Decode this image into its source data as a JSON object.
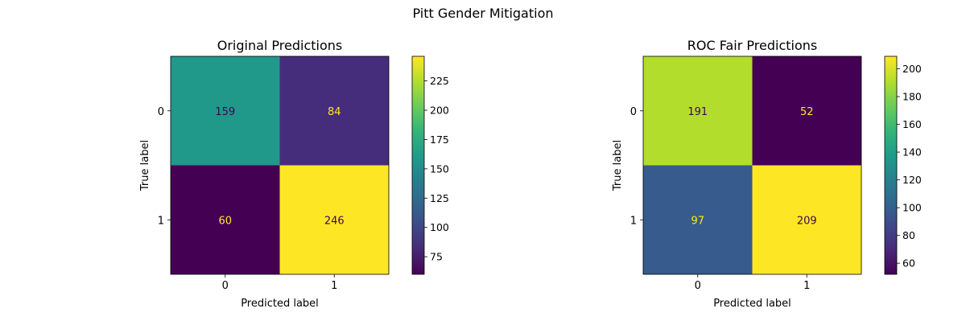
{
  "figure": {
    "title": "Pitt Gender Mitigation"
  },
  "chart_data": [
    {
      "type": "heatmap",
      "title": "Original Predictions",
      "xlabel": "Predicted label",
      "ylabel": "True label",
      "x_categories": [
        "0",
        "1"
      ],
      "y_categories": [
        "0",
        "1"
      ],
      "matrix": [
        [
          159,
          84
        ],
        [
          60,
          246
        ]
      ],
      "colormap": "viridis",
      "colorbar": {
        "min": 60,
        "max": 246,
        "ticks": [
          75,
          100,
          125,
          150,
          175,
          200,
          225
        ]
      },
      "grid": false
    },
    {
      "type": "heatmap",
      "title": "ROC Fair Predictions",
      "xlabel": "Predicted label",
      "ylabel": "True label",
      "x_categories": [
        "0",
        "1"
      ],
      "y_categories": [
        "0",
        "1"
      ],
      "matrix": [
        [
          191,
          52
        ],
        [
          97,
          209
        ]
      ],
      "colormap": "viridis",
      "colorbar": {
        "min": 52,
        "max": 209,
        "ticks": [
          60,
          80,
          100,
          120,
          140,
          160,
          180,
          200
        ]
      },
      "grid": false
    }
  ]
}
